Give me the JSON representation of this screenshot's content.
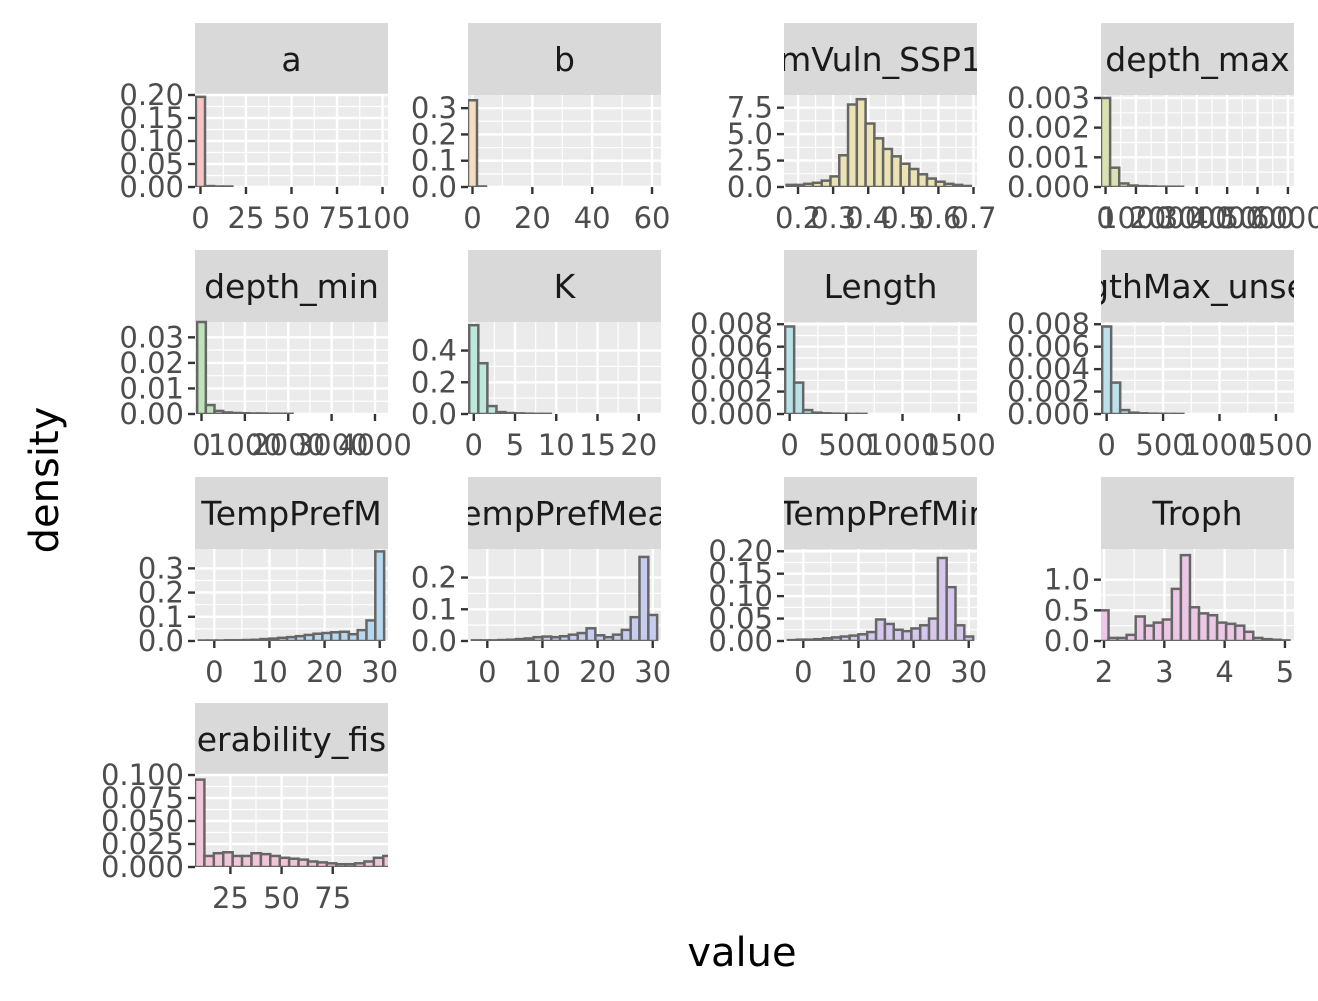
{
  "figure": {
    "xlabel": "value",
    "ylabel": "density"
  },
  "colors": {
    "panel_background": "#ebebeb",
    "grid": "#ffffff",
    "strip_background": "#d9d9d9",
    "bar_outline": "#666666"
  },
  "chart_data": [
    {
      "type": "bar",
      "title": "a",
      "fill": "#f6c6c6",
      "x": [
        0,
        5,
        10,
        15,
        20,
        25,
        30,
        35,
        40,
        45,
        50,
        55,
        60,
        65,
        70,
        75,
        80,
        85,
        90,
        95,
        100
      ],
      "values": [
        0.196,
        0.002,
        0.001,
        0.001,
        0.0,
        0.0,
        0.0,
        0.0,
        0.0,
        0.0,
        0.0,
        0.0,
        0.0,
        0.0,
        0.0,
        0.0,
        0.0,
        0.0,
        0.0,
        0.0,
        0.0
      ],
      "xlim": [
        -3,
        103
      ],
      "ylim": [
        0,
        0.2
      ],
      "xticks": [
        0,
        25,
        50,
        75,
        100
      ],
      "xtick_labels": [
        "0",
        "25",
        "50",
        "75",
        "100"
      ],
      "yticks": [
        0,
        0.05,
        0.1,
        0.15,
        0.2
      ],
      "ytick_labels": [
        "0.00",
        "0.05",
        "0.10",
        "0.15",
        "0.20"
      ]
    },
    {
      "type": "bar",
      "title": "b",
      "fill": "#f6dcc0",
      "x": [
        0,
        3,
        6,
        9,
        12,
        15,
        18,
        21,
        24,
        27,
        30,
        33,
        36,
        39,
        42,
        45,
        48,
        51,
        54,
        57,
        60
      ],
      "values": [
        0.33,
        0.002,
        0.0,
        0.0,
        0.0,
        0.0,
        0.0,
        0.0,
        0.0,
        0.0,
        0.0,
        0.0,
        0.0,
        0.0,
        0.0,
        0.0,
        0.0,
        0.0,
        0.0,
        0.0,
        0.0
      ],
      "xlim": [
        -1.5,
        63
      ],
      "ylim": [
        0,
        0.35
      ],
      "xticks": [
        0,
        20,
        40,
        60
      ],
      "xtick_labels": [
        "0",
        "20",
        "40",
        "60"
      ],
      "yticks": [
        0,
        0.1,
        0.2,
        0.3
      ],
      "ytick_labels": [
        "0.0",
        "0.1",
        "0.2",
        "0.3"
      ]
    },
    {
      "type": "bar",
      "title": "mVuln_SSP1",
      "fill": "#ece3b4",
      "x": [
        0.18,
        0.205,
        0.23,
        0.255,
        0.28,
        0.305,
        0.33,
        0.355,
        0.38,
        0.405,
        0.43,
        0.455,
        0.48,
        0.505,
        0.53,
        0.555,
        0.58,
        0.605,
        0.63,
        0.655,
        0.68
      ],
      "values": [
        0.2,
        0.2,
        0.3,
        0.4,
        0.6,
        1.0,
        3.0,
        7.8,
        8.3,
        6.0,
        4.6,
        3.6,
        2.9,
        2.2,
        1.7,
        1.2,
        0.8,
        0.5,
        0.3,
        0.2,
        0.1
      ],
      "xlim": [
        0.16,
        0.71
      ],
      "ylim": [
        0,
        8.7
      ],
      "xticks": [
        0.2,
        0.3,
        0.4,
        0.5,
        0.6,
        0.7
      ],
      "xtick_labels": [
        "0.2",
        "0.3",
        "0.4",
        "0.5",
        "0.6",
        "0.7"
      ],
      "yticks": [
        0,
        2.5,
        5,
        7.5
      ],
      "ytick_labels": [
        "0.0",
        "2.5",
        "5.0",
        "7.5"
      ]
    },
    {
      "type": "bar",
      "title": "depth_max",
      "fill": "#d9e2b0",
      "x": [
        0,
        300,
        600,
        900,
        1200,
        1500,
        1800,
        2100,
        2400,
        2700,
        3000,
        3300,
        3600,
        3900,
        4200,
        4500,
        4800,
        5100,
        5400,
        5700,
        6000
      ],
      "values": [
        0.003,
        0.00065,
        0.00012,
        5e-05,
        3e-05,
        2e-05,
        1e-05,
        1e-05,
        1e-05,
        0.0,
        0.0,
        0.0,
        0.0,
        0.0,
        0.0,
        0.0,
        0.0,
        0.0,
        0.0,
        0.0,
        0.0
      ],
      "xlim": [
        -150,
        6200
      ],
      "ylim": [
        0,
        0.0031
      ],
      "xticks": [
        0,
        1000,
        2000,
        3000,
        4000,
        5000,
        6000
      ],
      "xtick_labels": [
        "0",
        "1000",
        "2000",
        "3000",
        "4000",
        "5000",
        "6000"
      ],
      "yticks": [
        0,
        0.001,
        0.002,
        0.003
      ],
      "ytick_labels": [
        "0.000",
        "0.001",
        "0.002",
        "0.003"
      ]
    },
    {
      "type": "bar",
      "title": "depth_min",
      "fill": "#bfe3b8",
      "x": [
        0,
        200,
        400,
        600,
        800,
        1000,
        1200,
        1400,
        1600,
        1800,
        2000,
        2200,
        2400,
        2600,
        2800,
        3000,
        3200,
        3400,
        3600,
        3800,
        4000
      ],
      "values": [
        0.036,
        0.0035,
        0.0012,
        0.0006,
        0.0004,
        0.0003,
        0.0002,
        0.0002,
        0.0001,
        0.0001,
        0.0001,
        0.0,
        0.0,
        0.0,
        0.0,
        0.0,
        0.0,
        0.0,
        0.0,
        0.0,
        0.0
      ],
      "xlim": [
        -150,
        4300
      ],
      "ylim": [
        0,
        0.036
      ],
      "xticks": [
        0,
        1000,
        2000,
        3000,
        4000
      ],
      "xtick_labels": [
        "0",
        "1000",
        "2000",
        "3000",
        "4000"
      ],
      "yticks": [
        0,
        0.01,
        0.02,
        0.03
      ],
      "ytick_labels": [
        "0.00",
        "0.01",
        "0.02",
        "0.03"
      ]
    },
    {
      "type": "bar",
      "title": "K",
      "fill": "#bde8dc",
      "x": [
        0,
        1.1,
        2.2,
        3.3,
        4.4,
        5.5,
        6.6,
        7.7,
        8.8,
        9.9,
        11,
        12.1,
        13.2,
        14.3,
        15.4,
        16.5,
        17.6,
        18.7,
        19.8,
        20.9,
        22
      ],
      "values": [
        0.56,
        0.32,
        0.05,
        0.012,
        0.006,
        0.004,
        0.002,
        0.001,
        0.001,
        0.0,
        0.0,
        0.0,
        0.0,
        0.0,
        0.0,
        0.0,
        0.0,
        0.0,
        0.0,
        0.0,
        0.0
      ],
      "xlim": [
        -0.7,
        22.7
      ],
      "ylim": [
        0,
        0.58
      ],
      "xticks": [
        0,
        5,
        10,
        15,
        20
      ],
      "xtick_labels": [
        "0",
        "5",
        "10",
        "15",
        "20"
      ],
      "yticks": [
        0,
        0.2,
        0.4
      ],
      "ytick_labels": [
        "0.0",
        "0.2",
        "0.4"
      ]
    },
    {
      "type": "bar",
      "title": "Length",
      "fill": "#b9e2e6",
      "x": [
        0,
        80,
        160,
        240,
        320,
        400,
        480,
        560,
        640,
        720,
        800,
        880,
        960,
        1040,
        1120,
        1200,
        1280,
        1360,
        1440,
        1520,
        1600
      ],
      "values": [
        0.0078,
        0.0028,
        0.00035,
        0.00012,
        6e-05,
        3e-05,
        2e-05,
        1e-05,
        1e-05,
        0.0,
        0.0,
        0.0,
        0.0,
        0.0,
        0.0,
        0.0,
        0.0,
        0.0,
        0.0,
        0.0,
        0.0
      ],
      "xlim": [
        -50,
        1660
      ],
      "ylim": [
        0,
        0.0082
      ],
      "xticks": [
        0,
        500,
        1000,
        1500
      ],
      "xtick_labels": [
        "0",
        "500",
        "1000",
        "1500"
      ],
      "yticks": [
        0,
        0.002,
        0.004,
        0.006,
        0.008
      ],
      "ytick_labels": [
        "0.000",
        "0.002",
        "0.004",
        "0.006",
        "0.008"
      ]
    },
    {
      "type": "bar",
      "title": "gthMax_unse",
      "fill": "#bce0ec",
      "x": [
        0,
        80,
        160,
        240,
        320,
        400,
        480,
        560,
        640,
        720,
        800,
        880,
        960,
        1040,
        1120,
        1200,
        1280,
        1360,
        1440,
        1520,
        1600
      ],
      "values": [
        0.0078,
        0.0028,
        0.00035,
        0.00012,
        6e-05,
        3e-05,
        2e-05,
        1e-05,
        1e-05,
        0.0,
        0.0,
        0.0,
        0.0,
        0.0,
        0.0,
        0.0,
        0.0,
        0.0,
        0.0,
        0.0,
        0.0
      ],
      "xlim": [
        -50,
        1660
      ],
      "ylim": [
        0,
        0.0082
      ],
      "xticks": [
        0,
        500,
        1000,
        1500
      ],
      "xtick_labels": [
        "0",
        "500",
        "1000",
        "1500"
      ],
      "yticks": [
        0,
        0.002,
        0.004,
        0.006,
        0.008
      ],
      "ytick_labels": [
        "0.000",
        "0.002",
        "0.004",
        "0.006",
        "0.008"
      ]
    },
    {
      "type": "bar",
      "title": "TempPrefM",
      "fill": "#b8d8ef",
      "x": [
        -2,
        -0.4,
        1.2,
        2.8,
        4.4,
        6,
        7.6,
        9.2,
        10.8,
        12.4,
        14,
        15.6,
        17.2,
        18.8,
        20.4,
        22,
        23.6,
        25.2,
        26.8,
        28.4,
        30
      ],
      "values": [
        0.002,
        0.002,
        0.002,
        0.003,
        0.003,
        0.004,
        0.005,
        0.008,
        0.01,
        0.013,
        0.016,
        0.02,
        0.025,
        0.03,
        0.033,
        0.036,
        0.038,
        0.028,
        0.045,
        0.085,
        0.37
      ],
      "xlim": [
        -3.5,
        31.5
      ],
      "ylim": [
        0,
        0.38
      ],
      "xticks": [
        0,
        10,
        20,
        30
      ],
      "xtick_labels": [
        "0",
        "10",
        "20",
        "30"
      ],
      "yticks": [
        0,
        0.1,
        0.2,
        0.3
      ],
      "ytick_labels": [
        "0.0",
        "0.1",
        "0.2",
        "0.3"
      ]
    },
    {
      "type": "bar",
      "title": "empPrefMea",
      "fill": "#c6cdef",
      "x": [
        -2,
        -0.4,
        1.2,
        2.8,
        4.4,
        6,
        7.6,
        9.2,
        10.8,
        12.4,
        14,
        15.6,
        17.2,
        18.8,
        20.4,
        22,
        23.6,
        25.2,
        26.8,
        28.4,
        30
      ],
      "values": [
        0.002,
        0.002,
        0.002,
        0.003,
        0.004,
        0.006,
        0.008,
        0.012,
        0.014,
        0.012,
        0.015,
        0.02,
        0.025,
        0.04,
        0.018,
        0.012,
        0.02,
        0.035,
        0.075,
        0.265,
        0.082
      ],
      "xlim": [
        -3.5,
        31.5
      ],
      "ylim": [
        0,
        0.29
      ],
      "xticks": [
        0,
        10,
        20,
        30
      ],
      "xtick_labels": [
        "0",
        "10",
        "20",
        "30"
      ],
      "yticks": [
        0,
        0.1,
        0.2
      ],
      "ytick_labels": [
        "0.0",
        "0.1",
        "0.2"
      ]
    },
    {
      "type": "bar",
      "title": "TempPrefMir",
      "fill": "#d6c8ec",
      "x": [
        -2,
        -0.4,
        1.2,
        2.8,
        4.4,
        6,
        7.6,
        9.2,
        10.8,
        12.4,
        14,
        15.6,
        17.2,
        18.8,
        20.4,
        22,
        23.6,
        25.2,
        26.8,
        28.4,
        30
      ],
      "values": [
        0.002,
        0.003,
        0.003,
        0.004,
        0.006,
        0.008,
        0.01,
        0.012,
        0.015,
        0.02,
        0.048,
        0.038,
        0.025,
        0.022,
        0.028,
        0.035,
        0.05,
        0.185,
        0.12,
        0.035,
        0.01
      ],
      "xlim": [
        -3.5,
        31.5
      ],
      "ylim": [
        0,
        0.205
      ],
      "xticks": [
        0,
        10,
        20,
        30
      ],
      "xtick_labels": [
        "0",
        "10",
        "20",
        "30"
      ],
      "yticks": [
        0,
        0.05,
        0.1,
        0.15,
        0.2
      ],
      "ytick_labels": [
        "0.00",
        "0.05",
        "0.10",
        "0.15",
        "0.20"
      ]
    },
    {
      "type": "bar",
      "title": "Troph",
      "fill": "#ecc8e6",
      "x": [
        2.0,
        2.15,
        2.3,
        2.45,
        2.6,
        2.75,
        2.9,
        3.05,
        3.2,
        3.35,
        3.5,
        3.65,
        3.8,
        3.95,
        4.1,
        4.25,
        4.4,
        4.55,
        4.7,
        4.85,
        5.0
      ],
      "values": [
        0.5,
        0.05,
        0.05,
        0.1,
        0.4,
        0.25,
        0.3,
        0.35,
        0.85,
        1.4,
        0.55,
        0.45,
        0.42,
        0.3,
        0.28,
        0.25,
        0.15,
        0.05,
        0.03,
        0.02,
        0.01
      ],
      "xlim": [
        1.95,
        5.15
      ],
      "ylim": [
        0,
        1.5
      ],
      "xticks": [
        2,
        3,
        4,
        5
      ],
      "xtick_labels": [
        "2",
        "3",
        "4",
        "5"
      ],
      "yticks": [
        0,
        0.5,
        1.0
      ],
      "ytick_labels": [
        "0.0",
        "0.5",
        "1.0"
      ]
    },
    {
      "type": "bar",
      "title": "erability_fis",
      "fill": "#f1c6d8",
      "x": [
        10,
        14.6,
        19.2,
        23.8,
        28.4,
        33,
        37.6,
        42.2,
        46.8,
        51.4,
        56,
        60.6,
        65.2,
        69.8,
        74.4,
        79,
        83.6,
        88.2,
        92.8,
        97.4,
        102
      ],
      "values": [
        0.095,
        0.012,
        0.015,
        0.016,
        0.012,
        0.012,
        0.015,
        0.014,
        0.012,
        0.01,
        0.009,
        0.008,
        0.006,
        0.005,
        0.004,
        0.003,
        0.003,
        0.004,
        0.006,
        0.01,
        0.012
      ],
      "xlim": [
        7.7,
        102
      ],
      "ylim": [
        0,
        0.1
      ],
      "xticks": [
        25,
        50,
        75
      ],
      "xtick_labels": [
        "25",
        "50",
        "75"
      ],
      "yticks": [
        0,
        0.025,
        0.05,
        0.075,
        0.1
      ],
      "ytick_labels": [
        "0.000",
        "0.025",
        "0.050",
        "0.075",
        "0.100"
      ]
    }
  ]
}
